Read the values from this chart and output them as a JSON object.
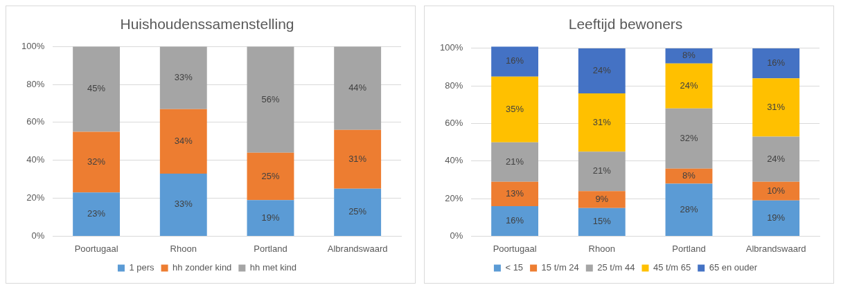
{
  "chart_data": [
    {
      "type": "bar",
      "title": "Huishoudenssamenstelling",
      "categories": [
        "Poortugaal",
        "Rhoon",
        "Portland",
        "Albrandswaard"
      ],
      "stacked": true,
      "ylim": [
        0,
        100
      ],
      "yticks": [
        {
          "value": 0,
          "label": "0%"
        },
        {
          "value": 20,
          "label": "20%"
        },
        {
          "value": 40,
          "label": "40%"
        },
        {
          "value": 60,
          "label": "60%"
        },
        {
          "value": 80,
          "label": "80%"
        },
        {
          "value": 100,
          "label": "100%"
        }
      ],
      "grid": "y",
      "legend": "bottom",
      "series": [
        {
          "name": "1 pers",
          "color": "#5b9bd5",
          "values": [
            23,
            33,
            19,
            25
          ],
          "value_labels": [
            "23%",
            "33%",
            "19%",
            "25%"
          ]
        },
        {
          "name": "hh zonder kind",
          "color": "#ed7d31",
          "values": [
            32,
            34,
            25,
            31
          ],
          "value_labels": [
            "32%",
            "34%",
            "25%",
            "31%"
          ]
        },
        {
          "name": "hh met kind",
          "color": "#a5a5a5",
          "values": [
            45,
            33,
            56,
            44
          ],
          "value_labels": [
            "45%",
            "33%",
            "56%",
            "44%"
          ]
        }
      ]
    },
    {
      "type": "bar",
      "title": "Leeftijd bewoners",
      "categories": [
        "Poortugaal",
        "Rhoon",
        "Portland",
        "Albrandswaard"
      ],
      "stacked": true,
      "ylim": [
        0,
        101
      ],
      "yticks": [
        {
          "value": 0,
          "label": "0%"
        },
        {
          "value": 20,
          "label": "20%"
        },
        {
          "value": 40,
          "label": "40%"
        },
        {
          "value": 60,
          "label": "60%"
        },
        {
          "value": 80,
          "label": "80%"
        },
        {
          "value": 100,
          "label": "100%"
        }
      ],
      "grid": "y",
      "legend": "bottom",
      "series": [
        {
          "name": "< 15",
          "color": "#5b9bd5",
          "values": [
            16,
            15,
            28,
            19
          ],
          "value_labels": [
            "16%",
            "15%",
            "28%",
            "19%"
          ]
        },
        {
          "name": "15 t/m 24",
          "color": "#ed7d31",
          "values": [
            13,
            9,
            8,
            10
          ],
          "value_labels": [
            "13%",
            "9%",
            "8%",
            "10%"
          ]
        },
        {
          "name": "25 t/m 44",
          "color": "#a5a5a5",
          "values": [
            21,
            21,
            32,
            24
          ],
          "value_labels": [
            "21%",
            "21%",
            "32%",
            "24%"
          ]
        },
        {
          "name": "45 t/m 65",
          "color": "#ffc000",
          "values": [
            35,
            31,
            24,
            31
          ],
          "value_labels": [
            "35%",
            "31%",
            "24%",
            "31%"
          ]
        },
        {
          "name": "65 en ouder",
          "color": "#4472c4",
          "values": [
            16,
            24,
            8,
            16
          ],
          "value_labels": [
            "16%",
            "24%",
            "8%",
            "16%"
          ]
        }
      ]
    }
  ]
}
